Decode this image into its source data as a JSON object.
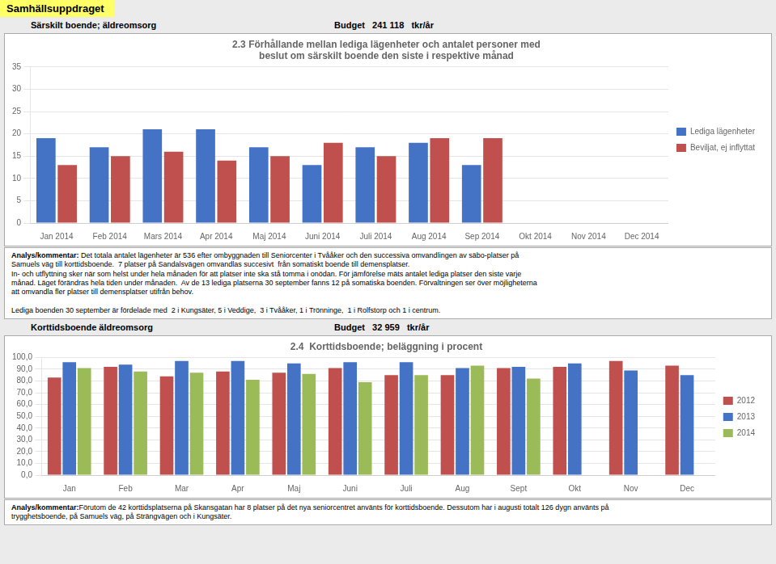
{
  "chart_data": [
    {
      "type": "bar",
      "title": "2.3 Förhållande mellan lediga lägenheter och antalet personer med\nbeslut om särskilt boende den siste i respektive månad",
      "annotations": [
        "Samhällsuppdraget",
        "Särskilt boende; äldreomsorg",
        "Budget   241 118   tkr/år",
        "Analys/kommentar:",
        " Det totala antalet lägenheter är 536 efter ombyggnaden till Seniorcenter i Tvååker och den successiva omvandlingen av säbo-platser på\nSamuels väg till korttidsboende.  7 platser på Sandalsvägen omvandlas succesivt  från somatiskt boende till demensplatser.\nIn- och utflyttning sker när som helst under hela månaden för att platser inte ska stå tomma i onödan. För jämförelse mäts antalet lediga platser den siste varje\nmånad. Läget förändras hela tiden under månaden.  Av de 13 lediga platserna 30 september fanns 12 på somatiska boenden. Förvaltningen ser över möjligheterna\natt omvandla fler platser till demensplatser utifrån behov.\n\nLediga boenden 30 september är fördelade med  2 i Kungsäter, 5 i Veddige,  3 i Tvååker, 1 i Trönninge,  1 i Rolfstorp och 1 i centrum."
      ],
      "categories": [
        "Jan 2014",
        "Feb 2014",
        "Mars 2014",
        "Apr 2014",
        "Maj 2014",
        "Juni 2014",
        "Juli 2014",
        "Aug 2014",
        "Sep 2014",
        "Okt 2014",
        "Nov 2014",
        "Dec 2014"
      ],
      "series": [
        {
          "name": "Lediga lägenheter",
          "color": "#4472C4",
          "values": [
            19,
            17,
            21,
            21,
            17,
            13,
            17,
            18,
            13,
            0,
            0,
            0
          ]
        },
        {
          "name": "Beviljat, ej inflyttat",
          "color": "#C0504D",
          "values": [
            13,
            15,
            16,
            14,
            15,
            18,
            15,
            19,
            19,
            0,
            0,
            0
          ]
        }
      ],
      "ylim": [
        0,
        35
      ],
      "yticks": [
        0,
        5,
        10,
        15,
        20,
        25,
        30,
        35
      ],
      "grid": true,
      "legend": "right"
    },
    {
      "type": "bar",
      "title": "2.4  Korttidsboende; beläggning i procent",
      "annotations": [
        "Korttidsboende äldreomsorg",
        "Budget   32 959   tkr/år",
        "Analys/kommentar:",
        "Förutom de 42 korttidsplatserna på Skansgatan har 8 platser på det nya seniorcentret använts för korttidsboende. Dessutom har i augusti totalt 126 dygn använts på\ntrygghetsboende, på Samuels väg, på Strängvägen och i Kungsäter."
      ],
      "categories": [
        "Jan",
        "Feb",
        "Mar",
        "Apr",
        "Maj",
        "Juni",
        "Juli",
        "Aug",
        "Sept",
        "Okt",
        "Nov",
        "Dec"
      ],
      "series": [
        {
          "name": "2012",
          "color": "#C0504D",
          "values": [
            83,
            92,
            84,
            88,
            87,
            91,
            85,
            85,
            91,
            92,
            97,
            93
          ]
        },
        {
          "name": "2013",
          "color": "#4472C4",
          "values": [
            96,
            94,
            97,
            97,
            95,
            96,
            96,
            91,
            92,
            95,
            89,
            85
          ]
        },
        {
          "name": "2014",
          "color": "#9BBB59",
          "values": [
            91,
            88,
            87,
            81,
            86,
            79,
            85,
            93,
            82,
            0,
            0,
            0
          ]
        }
      ],
      "ylim": [
        0,
        100
      ],
      "yticks": [
        {
          "value": 0,
          "label": "0,0"
        },
        {
          "value": 10,
          "label": "10,0"
        },
        {
          "value": 20,
          "label": "20,0"
        },
        {
          "value": 30,
          "label": "30,0"
        },
        {
          "value": 40,
          "label": "40,0"
        },
        {
          "value": 50,
          "label": "50,0"
        },
        {
          "value": 60,
          "label": "60,0"
        },
        {
          "value": 70,
          "label": "70,0"
        },
        {
          "value": 80,
          "label": "80,0"
        },
        {
          "value": 90,
          "label": "90,0"
        },
        {
          "value": 100,
          "label": "100,0"
        }
      ],
      "grid": true,
      "legend": "right"
    }
  ]
}
